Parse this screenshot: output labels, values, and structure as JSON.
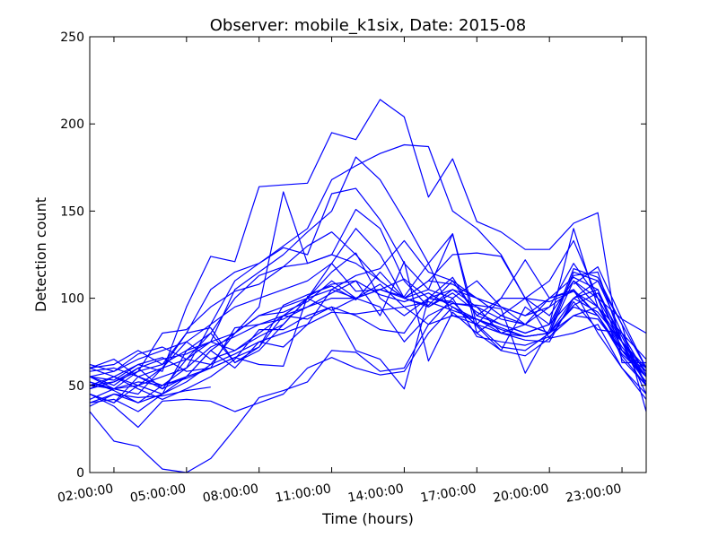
{
  "chart_data": {
    "type": "line",
    "title": "Observer: mobile_k1six, Date: 2015-08",
    "xlabel": "Time (hours)",
    "ylabel": "Detection count",
    "x_ticks": [
      "02:00:00",
      "05:00:00",
      "08:00:00",
      "11:00:00",
      "14:00:00",
      "17:00:00",
      "20:00:00",
      "23:00:00"
    ],
    "x_tick_hours": [
      2,
      5,
      8,
      11,
      14,
      17,
      20,
      23
    ],
    "xlim_hours": [
      1,
      24
    ],
    "ylim": [
      0,
      250
    ],
    "y_ticks": [
      0,
      50,
      100,
      150,
      200,
      250
    ],
    "line_color": "#0000ff",
    "grid": false,
    "x": [
      1,
      2,
      3,
      4,
      5,
      6,
      7,
      8,
      9,
      10,
      11,
      12,
      13,
      14,
      15,
      16,
      17,
      18,
      19,
      20,
      21,
      22,
      23,
      24
    ],
    "series": [
      {
        "values": [
          60,
          55,
          62,
          58,
          95,
          124,
          121,
          164,
          165,
          166,
          195,
          191,
          214,
          204,
          158,
          180,
          144,
          138,
          128,
          128,
          143,
          149,
          63,
          63
        ]
      },
      {
        "values": [
          52,
          48,
          45,
          60,
          80,
          105,
          115,
          120,
          130,
          140,
          168,
          176,
          183,
          188,
          187,
          150,
          140,
          125,
          100,
          90,
          110,
          100,
          75,
          45
        ]
      },
      {
        "values": [
          55,
          50,
          60,
          65,
          68,
          75,
          105,
          115,
          125,
          138,
          150,
          181,
          168,
          145,
          120,
          137,
          85,
          72,
          70,
          80,
          110,
          95,
          70,
          55
        ]
      },
      {
        "values": [
          45,
          40,
          55,
          60,
          75,
          85,
          110,
          120,
          129,
          125,
          160,
          163,
          145,
          120,
          105,
          100,
          110,
          95,
          85,
          80,
          115,
          110,
          80,
          50
        ]
      },
      {
        "values": [
          40,
          42,
          35,
          45,
          55,
          70,
          80,
          95,
          161,
          120,
          125,
          151,
          140,
          110,
          95,
          105,
          95,
          80,
          85,
          95,
          120,
          100,
          65,
          50
        ]
      },
      {
        "values": [
          50,
          48,
          52,
          50,
          60,
          85,
          95,
          100,
          105,
          110,
          120,
          140,
          125,
          100,
          110,
          108,
          100,
          90,
          85,
          100,
          112,
          105,
          70,
          60
        ]
      },
      {
        "values": [
          58,
          60,
          55,
          48,
          65,
          80,
          63,
          70,
          85,
          100,
          115,
          126,
          100,
          90,
          100,
          112,
          90,
          85,
          80,
          85,
          113,
          115,
          75,
          58
        ]
      },
      {
        "values": [
          48,
          52,
          58,
          62,
          70,
          75,
          80,
          90,
          95,
          100,
          105,
          113,
          117,
          133,
          115,
          110,
          100,
          95,
          90,
          100,
          104,
          95,
          72,
          55
        ]
      },
      {
        "values": [
          55,
          58,
          65,
          70,
          75,
          65,
          70,
          80,
          90,
          95,
          100,
          100,
          105,
          100,
          95,
          103,
          92,
          85,
          80,
          85,
          100,
          110,
          85,
          60
        ]
      },
      {
        "values": [
          45,
          40,
          50,
          55,
          60,
          72,
          78,
          85,
          88,
          95,
          103,
          110,
          102,
          98,
          103,
          95,
          88,
          82,
          78,
          80,
          96,
          103,
          78,
          50
        ]
      },
      {
        "values": [
          38,
          45,
          40,
          45,
          52,
          62,
          68,
          75,
          80,
          85,
          92,
          91,
          93,
          95,
          98,
          93,
          88,
          83,
          78,
          80,
          90,
          95,
          80,
          56
        ]
      },
      {
        "values": [
          35,
          18,
          15,
          2,
          0,
          8,
          25,
          43,
          47,
          52,
          70,
          69,
          58,
          60,
          85,
          90,
          88,
          80,
          76,
          75,
          100,
          92,
          75,
          60
        ]
      },
      {
        "values": [
          45,
          38,
          26,
          41,
          42,
          41,
          35,
          40,
          45,
          60,
          66,
          60,
          56,
          58,
          80,
          95,
          85,
          80,
          78,
          80,
          100,
          105,
          75,
          50
        ]
      },
      {
        "values": [
          50,
          55,
          48,
          42,
          48,
          55,
          65,
          82,
          82,
          90,
          95,
          90,
          82,
          80,
          100,
          105,
          100,
          95,
          90,
          95,
          105,
          90,
          70,
          52
        ]
      },
      {
        "values": [
          60,
          65,
          55,
          50,
          55,
          70,
          60,
          75,
          72,
          85,
          105,
          100,
          95,
          75,
          90,
          97,
          95,
          88,
          85,
          80,
          95,
          90,
          68,
          55
        ]
      },
      {
        "values": [
          62,
          58,
          68,
          72,
          65,
          62,
          80,
          90,
          92,
          98,
          110,
          100,
          108,
          95,
          85,
          100,
          78,
          75,
          73,
          78,
          90,
          88,
          70,
          58
        ]
      },
      {
        "values": [
          52,
          47,
          40,
          50,
          54,
          60,
          66,
          72,
          90,
          100,
          120,
          104,
          105,
          101,
          120,
          90,
          85,
          100,
          100,
          77,
          80,
          85,
          60,
          45
        ]
      },
      {
        "values": [
          42,
          48,
          58,
          80,
          82,
          95,
          104,
          108,
          118,
          120,
          125,
          120,
          110,
          100,
          96,
          110,
          90,
          100,
          122,
          100,
          105,
          80,
          60,
          42
        ]
      },
      {
        "values": [
          60,
          62,
          70,
          62,
          80,
          83,
          63,
          72,
          96,
          102,
          107,
          99,
          115,
          100,
          110,
          125,
          126,
          124,
          100,
          98,
          104,
          90,
          67,
          50
        ]
      },
      {
        "values": [
          55,
          48,
          50,
          45,
          70,
          80,
          100,
          113,
          118,
          130,
          138,
          125,
          110,
          100,
          105,
          137,
          80,
          70,
          95,
          85,
          140,
          95,
          75,
          55
        ]
      },
      {
        "values": [
          50,
          52,
          60,
          48,
          55,
          60,
          83,
          85,
          90,
          88,
          95,
          70,
          65,
          48,
          100,
          97,
          96,
          94,
          57,
          82,
          117,
          112,
          85,
          35
        ]
      },
      {
        "values": [
          55,
          53,
          62,
          66,
          58,
          60,
          66,
          62,
          61,
          101,
          108,
          110,
          90,
          121,
          64,
          92,
          80,
          90,
          100,
          110,
          133,
          100,
          88,
          60
        ]
      },
      {
        "values": [
          48,
          55,
          50,
          60,
          65,
          75,
          70,
          78,
          85,
          100,
          93,
          100,
          105,
          111,
          100,
          98,
          84,
          70,
          67,
          77,
          98,
          82,
          80,
          65
        ]
      },
      {
        "values": [
          40,
          45,
          43,
          44,
          47,
          49,
          null,
          null,
          null,
          null,
          null,
          null,
          null,
          null,
          null,
          null,
          null,
          null,
          null,
          null,
          null,
          null,
          null,
          null
        ]
      },
      {
        "values": [
          null,
          null,
          null,
          null,
          null,
          null,
          null,
          null,
          null,
          null,
          null,
          null,
          null,
          null,
          null,
          null,
          null,
          null,
          null,
          null,
          108,
          118,
          88,
          80
        ]
      }
    ]
  }
}
